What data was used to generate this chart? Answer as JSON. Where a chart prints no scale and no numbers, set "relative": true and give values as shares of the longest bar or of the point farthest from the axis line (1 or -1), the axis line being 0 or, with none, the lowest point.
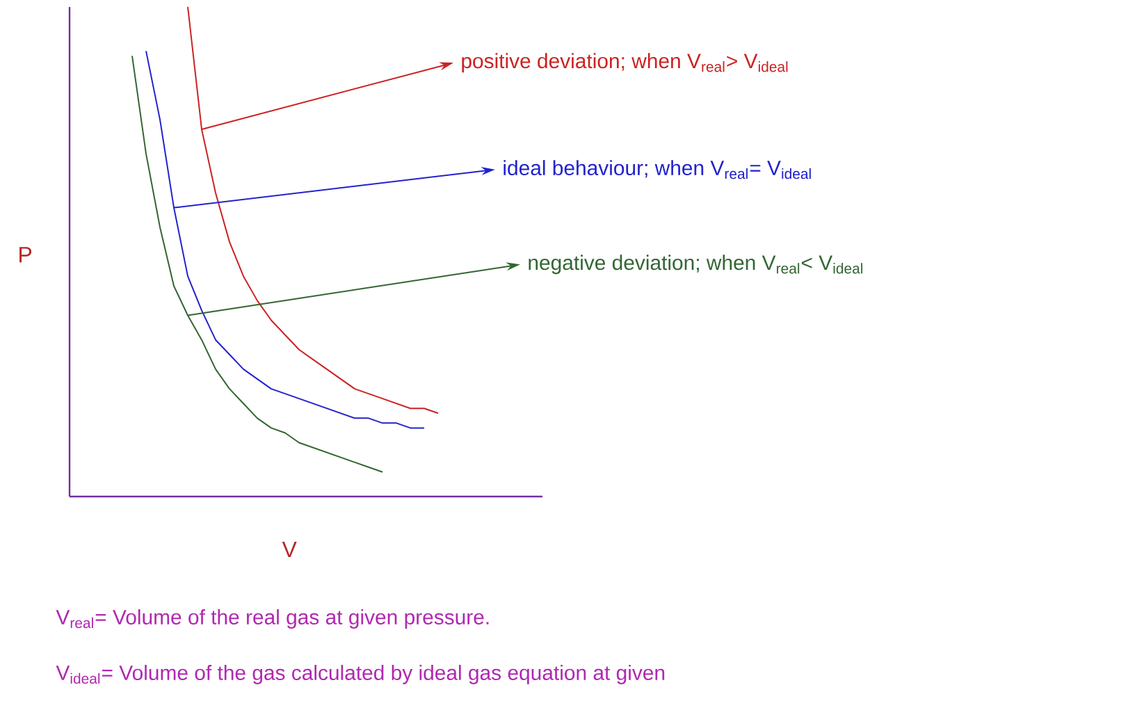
{
  "chart_data": {
    "type": "line",
    "relative": true,
    "xlabel": "V",
    "ylabel": "P",
    "categories": [
      null,
      null,
      null,
      null,
      null,
      null,
      null,
      null,
      null,
      null,
      null,
      null,
      null,
      null,
      null,
      null,
      null,
      null,
      null,
      null,
      null,
      null,
      null
    ],
    "series": [
      {
        "color": "#cc2222",
        "values": [
          null,
          null,
          null,
          null,
          1.0,
          0.75,
          0.62,
          0.52,
          0.45,
          0.4,
          0.36,
          0.33,
          0.3,
          0.28,
          0.26,
          0.24,
          0.22,
          0.21,
          0.2,
          0.19,
          0.18,
          0.18,
          0.17
        ]
      },
      {
        "color": "#2222cc",
        "values": [
          null,
          0.91,
          0.77,
          0.59,
          0.45,
          0.38,
          0.32,
          0.29,
          0.26,
          0.24,
          0.22,
          0.21,
          0.2,
          0.19,
          0.18,
          0.17,
          0.16,
          0.16,
          0.15,
          0.15,
          0.14,
          0.14,
          null
        ]
      },
      {
        "color": "#336633",
        "values": [
          0.9,
          0.7,
          0.55,
          0.43,
          0.37,
          0.32,
          0.26,
          0.22,
          0.19,
          0.16,
          0.14,
          0.13,
          0.11,
          0.1,
          0.09,
          0.08,
          0.07,
          0.06,
          0.05,
          null,
          null,
          null,
          null
        ]
      }
    ],
    "annotations": [
      "positive deviation; when V$_{real}$> V$_{ideal}$",
      "ideal behaviour; when V$_{real}$= V$_{ideal}$",
      "negative deviation; when V$_{real}$< V$_{ideal}$",
      "V$_{real}$= Volume of the real gas at given pressure.",
      "V$_{ideal}$= Volume of the gas calculated by ideal gas equation at given"
    ]
  }
}
